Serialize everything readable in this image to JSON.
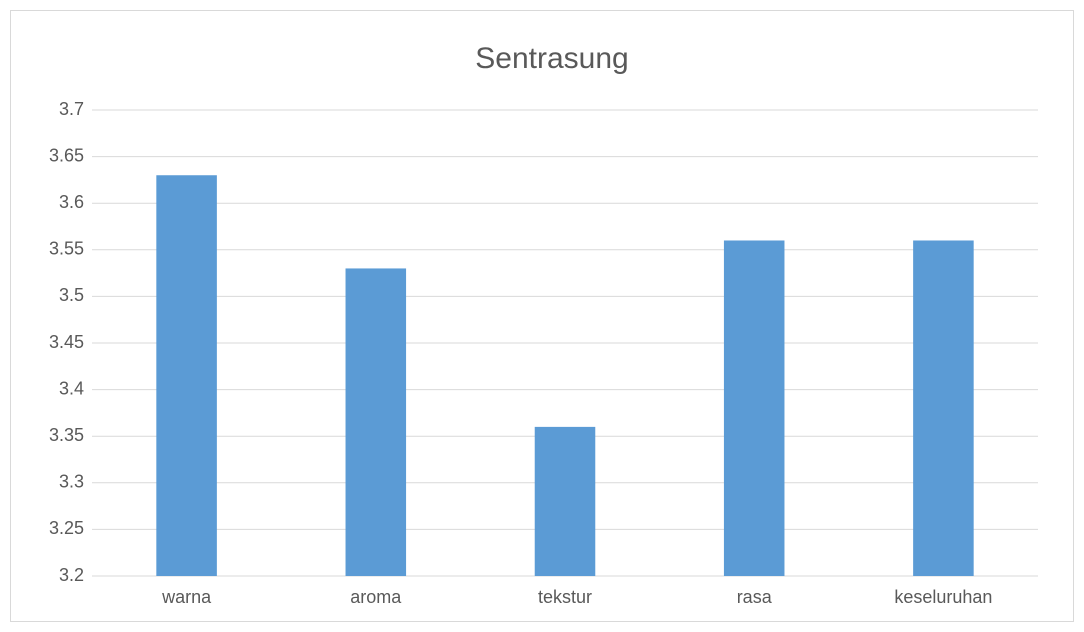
{
  "chart_data": {
    "type": "bar",
    "title": "Sentrasung",
    "categories": [
      "warna",
      "aroma",
      "tekstur",
      "rasa",
      "keseluruhan"
    ],
    "values": [
      3.63,
      3.53,
      3.36,
      3.56,
      3.56
    ],
    "color": "#5b9bd5",
    "ylim": [
      3.2,
      3.7
    ],
    "yticks": [
      3.2,
      3.25,
      3.3,
      3.35,
      3.4,
      3.45,
      3.5,
      3.55,
      3.6,
      3.65,
      3.7
    ],
    "grid": true
  }
}
